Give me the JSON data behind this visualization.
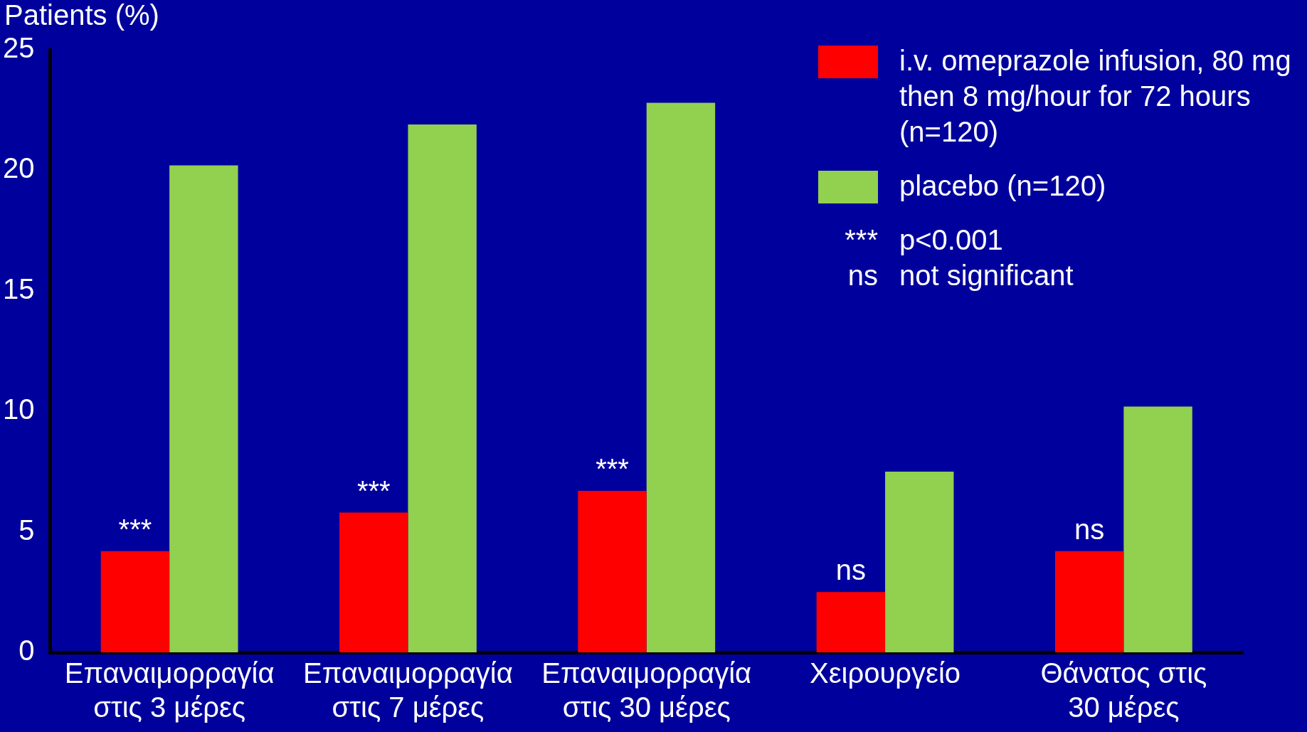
{
  "chart_data": {
    "type": "bar",
    "ylabel": "Patients (%)",
    "categories": [
      "Επαναιμορραγία\nστις 3 μέρες",
      "Επαναιμορραγία\nστις 7 μέρες",
      "Επαναιμορραγία\nστις 30 μέρες",
      "Χειρουργείο",
      "Θάνατος στις\n30 μέρες"
    ],
    "series": [
      {
        "name": "i.v. omeprazole infusion, 80 mg then 8 mg/hour for 72 hours (n=120)",
        "color": "#ff0000",
        "values": [
          4.2,
          5.8,
          6.7,
          2.5,
          4.2
        ]
      },
      {
        "name": "placebo (n=120)",
        "color": "#92d050",
        "values": [
          20.2,
          21.9,
          22.8,
          7.5,
          10.2
        ]
      }
    ],
    "ylim": [
      0,
      25
    ],
    "yticks": [
      0,
      5,
      10,
      15,
      20,
      25
    ],
    "grid": false,
    "legend": "top right",
    "annotations": [
      {
        "text": "***",
        "x": "Επαναιμορραγία\nστις 3 μέρες",
        "y": 4.2
      },
      {
        "text": "***",
        "x": "Επαναιμορραγία\nστις 7 μέρες",
        "y": 5.8
      },
      {
        "text": "***",
        "x": "Επαναιμορραγία\nστις 30 μέρες",
        "y": 6.7
      },
      {
        "text": "ns",
        "x": "Χειρουργείο",
        "y": 2.5
      },
      {
        "text": "ns",
        "x": "Θάνατος στις\n30 μέρες",
        "y": 4.2
      },
      "*** p<0.001",
      "ns not significant"
    ]
  }
}
